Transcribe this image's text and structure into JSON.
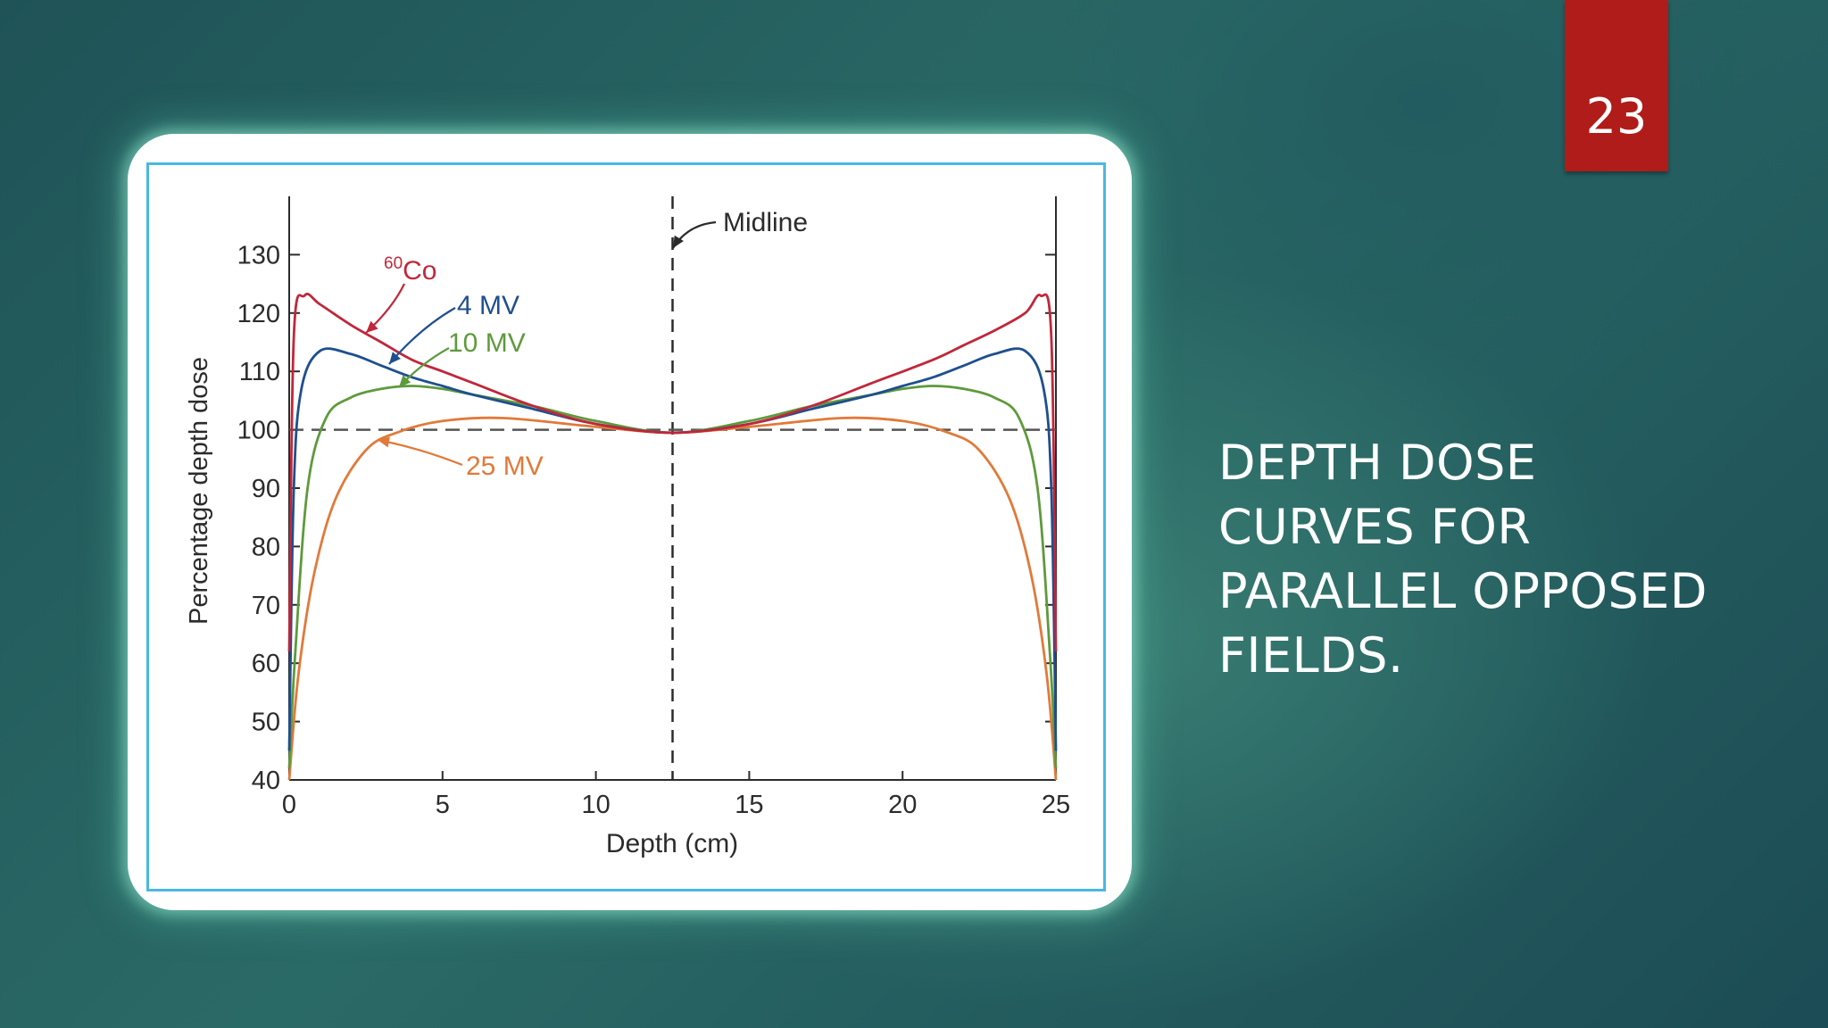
{
  "slide": {
    "number": "23",
    "caption_lines": [
      "DEPTH DOSE",
      "CURVES FOR",
      "PARALLEL OPPOSED",
      "FIELDS."
    ],
    "colors": {
      "background": "#245d5f",
      "badge": "#b01c1a",
      "frame": "#49b8e0"
    }
  },
  "chart_data": {
    "type": "line",
    "xlabel": "Depth (cm)",
    "ylabel": "Percentage depth dose",
    "xlim": [
      0,
      25
    ],
    "ylim": [
      40,
      140
    ],
    "xticks": [
      0,
      5,
      10,
      15,
      20,
      25
    ],
    "yticks": [
      40,
      50,
      60,
      70,
      80,
      90,
      100,
      110,
      120,
      130
    ],
    "grid": false,
    "reference_lines": [
      {
        "orientation": "vertical",
        "x": 12.5,
        "label": "Midline",
        "style": "dashed"
      },
      {
        "orientation": "horizontal",
        "y": 100,
        "style": "dashed"
      }
    ],
    "series": [
      {
        "label_sup": "60",
        "label_text": "Co",
        "color": "#c0273a",
        "x": [
          0,
          0.15,
          0.5,
          1,
          2,
          3,
          4,
          5,
          6,
          8,
          10,
          12.5,
          15,
          17,
          19,
          21,
          22,
          23,
          24,
          24.5,
          24.85,
          25
        ],
        "y": [
          62,
          116,
          123,
          121.5,
          118,
          115,
          112,
          110,
          108,
          104,
          101,
          99.5,
          101,
          104,
          108,
          112,
          114.5,
          117,
          120,
          123,
          116,
          62
        ]
      },
      {
        "label": "4 MV",
        "color": "#1f4f8f",
        "x": [
          0,
          0.15,
          0.4,
          1,
          2,
          3,
          4,
          5,
          6,
          8,
          10,
          12.5,
          15,
          17,
          19,
          20,
          21,
          22,
          23,
          24,
          24.6,
          24.85,
          25
        ],
        "y": [
          45,
          90,
          107,
          113.5,
          113,
          111,
          109,
          107.5,
          106,
          103.5,
          101,
          99.5,
          101,
          103.5,
          106,
          107.5,
          109,
          111,
          113,
          113.5,
          107,
          90,
          45
        ]
      },
      {
        "label": "10 MV",
        "color": "#5e9a3c",
        "x": [
          0,
          0.2,
          0.6,
          1.2,
          2,
          3,
          4,
          5,
          6,
          8,
          10,
          12.5,
          15,
          17,
          19,
          20,
          21,
          22,
          23,
          23.8,
          24.4,
          24.8,
          25
        ],
        "y": [
          42,
          62,
          90,
          102,
          105.5,
          107,
          107.5,
          107,
          106,
          104,
          101.5,
          99.5,
          101.5,
          104,
          106,
          107,
          107.5,
          107,
          105.5,
          102,
          90,
          62,
          42
        ]
      },
      {
        "label": "25 MV",
        "color": "#e07a3a",
        "x": [
          0,
          0.3,
          0.8,
          1.5,
          2.5,
          3.5,
          5,
          7,
          10,
          12.5,
          15,
          18,
          20,
          21.5,
          22.5,
          23.5,
          24.2,
          24.7,
          25
        ],
        "y": [
          40,
          58,
          75,
          88,
          96.5,
          99.5,
          101.5,
          102,
          100.5,
          99.5,
          100.5,
          102,
          101.5,
          99.5,
          96.5,
          88,
          75,
          58,
          40
        ]
      }
    ],
    "annotations": {
      "midline": "Midline",
      "co60_sup": "60",
      "co60": "Co",
      "mv4": "4 MV",
      "mv10": "10 MV",
      "mv25": "25 MV"
    }
  }
}
